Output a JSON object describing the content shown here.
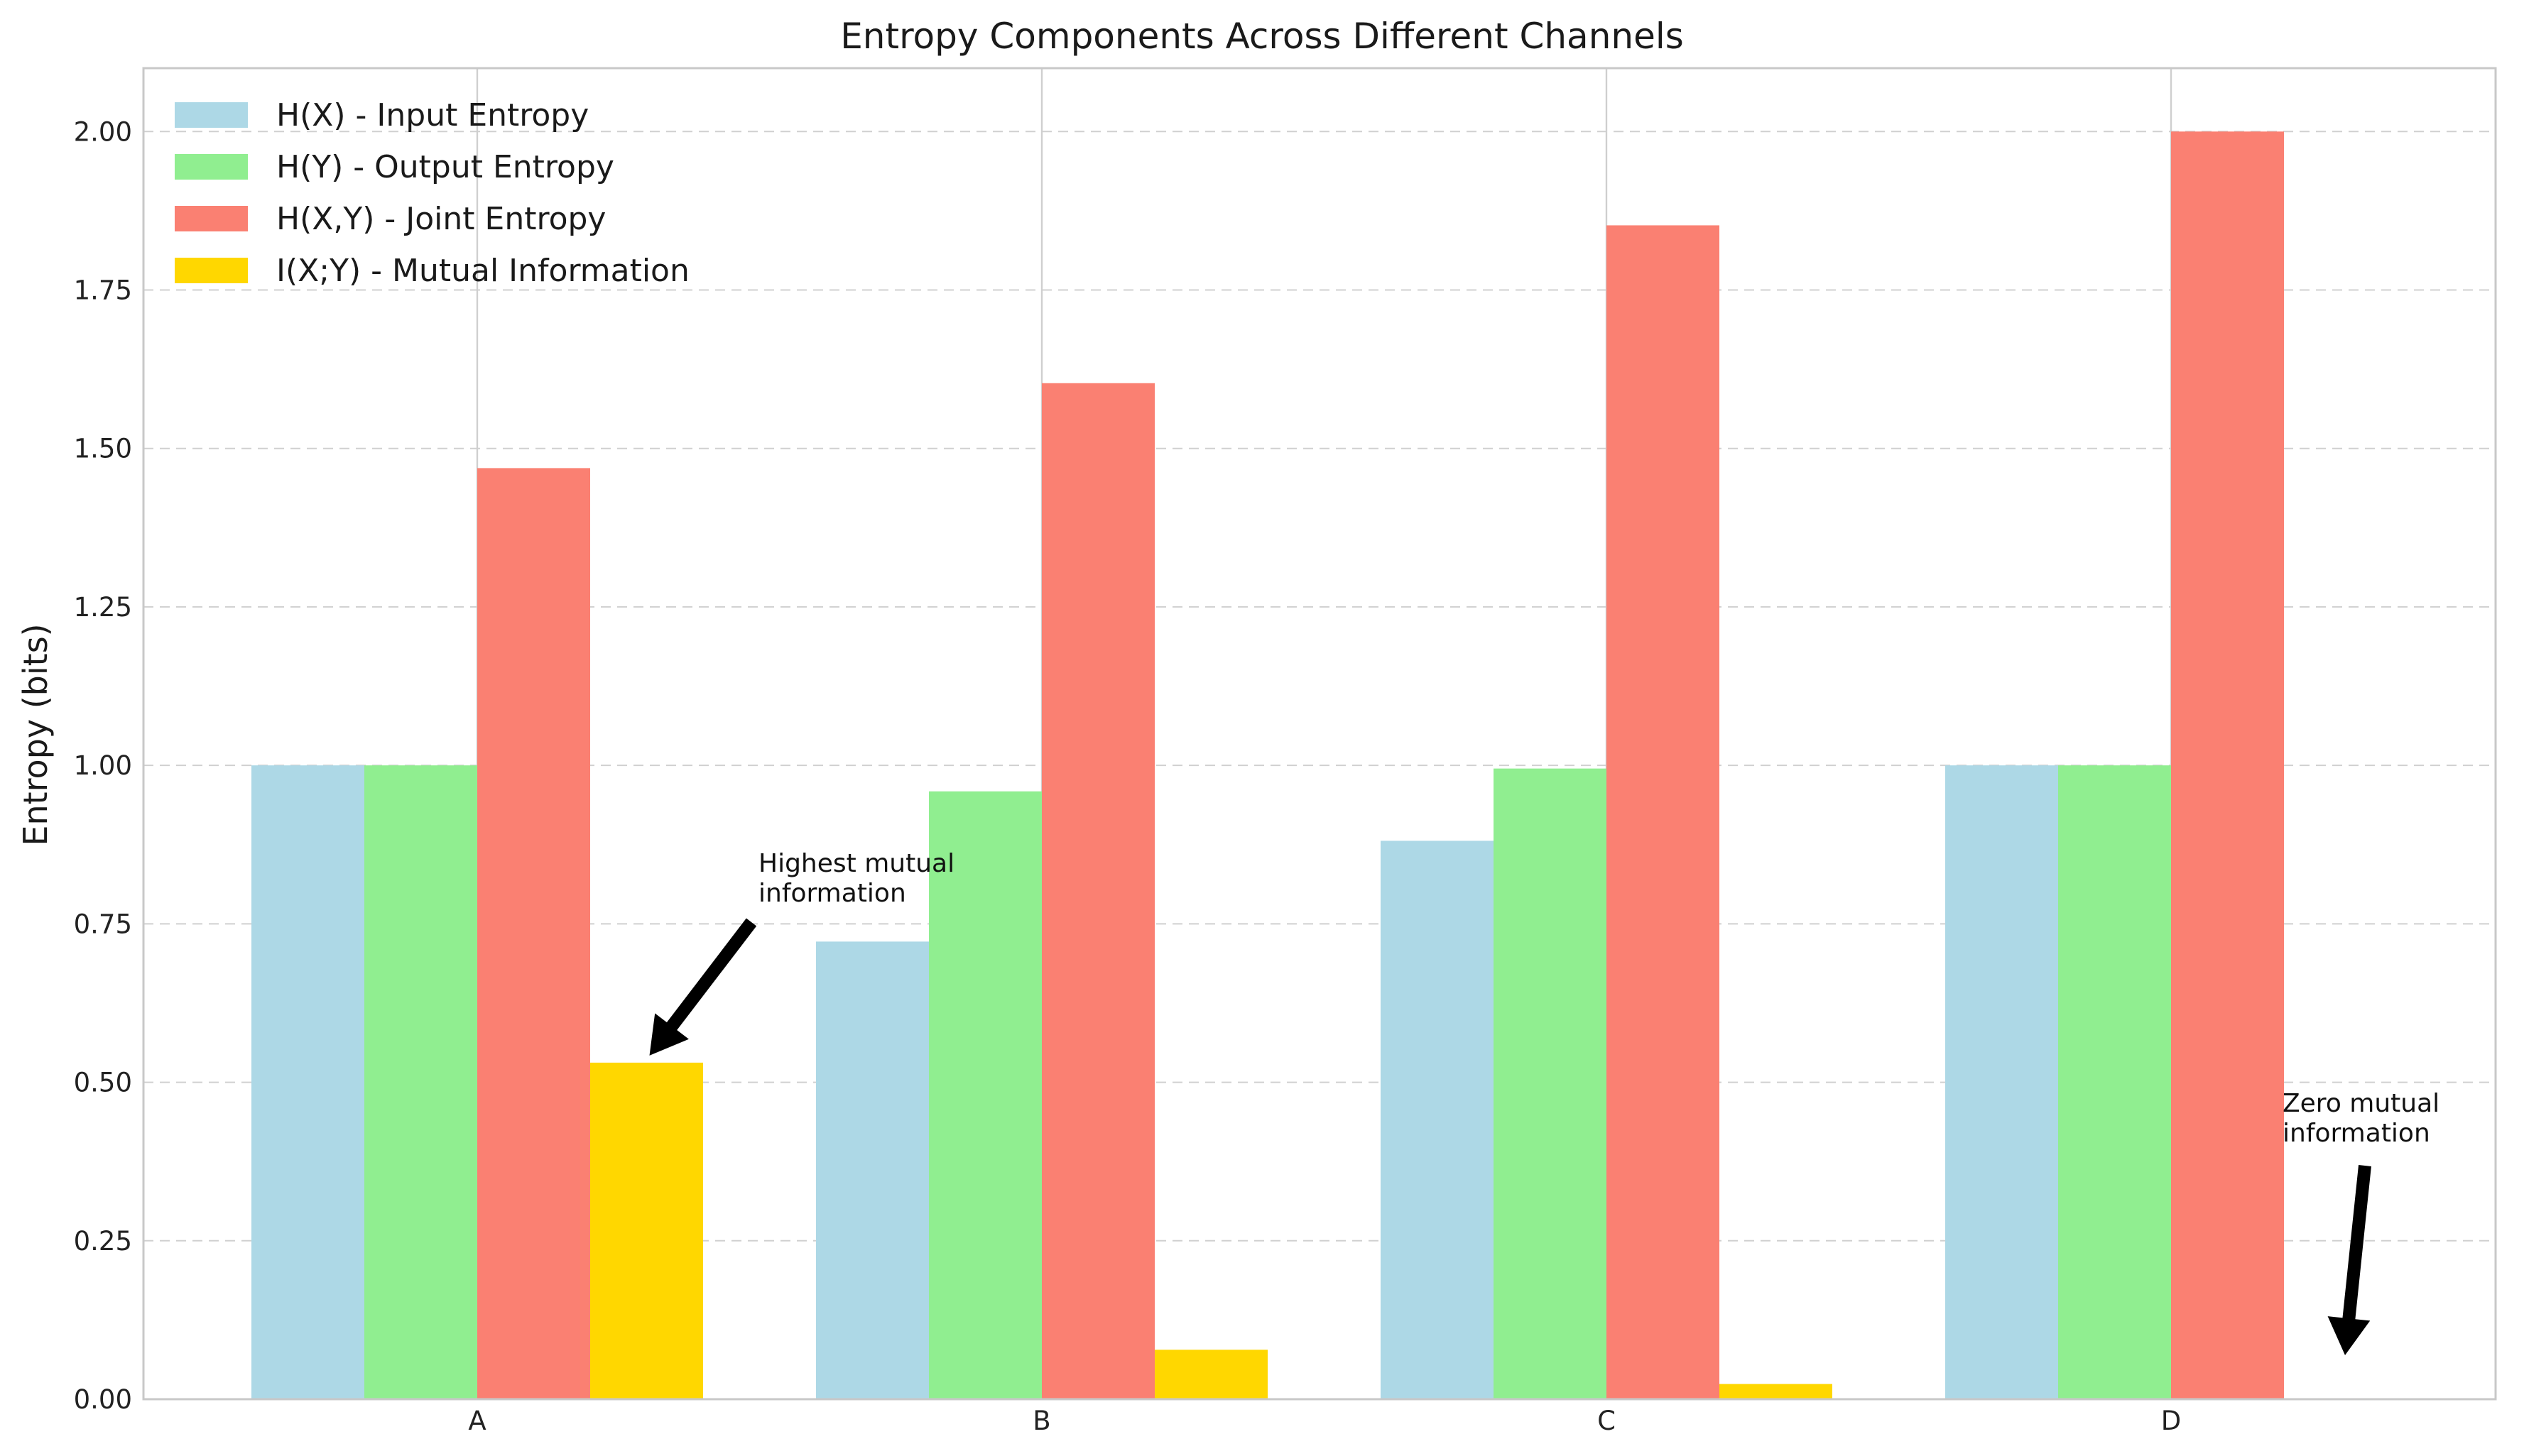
{
  "chart_data": {
    "type": "bar",
    "title": "Entropy Components Across Different Channels",
    "xlabel": "",
    "ylabel": "Entropy (bits)",
    "categories": [
      "A",
      "B",
      "C",
      "D"
    ],
    "ylim": [
      0,
      2.1
    ],
    "yticks": [
      "0.00",
      "0.25",
      "0.50",
      "0.75",
      "1.00",
      "1.25",
      "1.50",
      "1.75",
      "2.00"
    ],
    "grid": "on",
    "legend_position": "top-left",
    "series": [
      {
        "name": "H(X) - Input Entropy",
        "color": "#add8e6",
        "values": [
          1.0,
          0.722,
          0.881,
          1.0
        ]
      },
      {
        "name": "H(Y) - Output Entropy",
        "color": "#90ee90",
        "values": [
          1.0,
          0.959,
          0.995,
          1.0
        ]
      },
      {
        "name": "H(X,Y) - Joint Entropy",
        "color": "#fa8072",
        "values": [
          1.469,
          1.603,
          1.852,
          2.0
        ]
      },
      {
        "name": "I(X;Y) - Mutual Information",
        "color": "#ffd700",
        "values": [
          0.531,
          0.078,
          0.024,
          0.0
        ]
      }
    ],
    "annotations": [
      {
        "text_lines": [
          "Highest mutual",
          "information"
        ],
        "category": "A",
        "series_index": 3,
        "value": 0.531
      },
      {
        "text_lines": [
          "Zero mutual",
          "information"
        ],
        "category": "D",
        "series_index": 3,
        "value": 0.0
      }
    ]
  }
}
